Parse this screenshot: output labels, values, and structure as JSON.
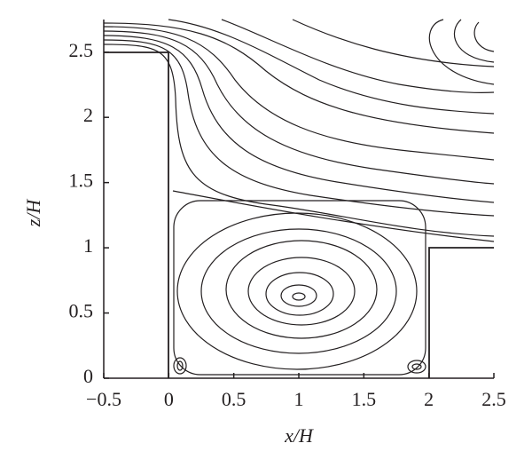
{
  "chart_data": {
    "type": "streamline",
    "x_label": "x/H",
    "y_label": "z/H",
    "xlim": [
      -0.5,
      2.5
    ],
    "ylim": [
      0,
      2.75
    ],
    "xticks": [
      {
        "value": -0.5,
        "label": "−0.5"
      },
      0,
      0.5,
      1,
      1.5,
      2,
      2.5
    ],
    "yticks": [
      0,
      0.5,
      1,
      1.5,
      2,
      2.5
    ]
  }
}
